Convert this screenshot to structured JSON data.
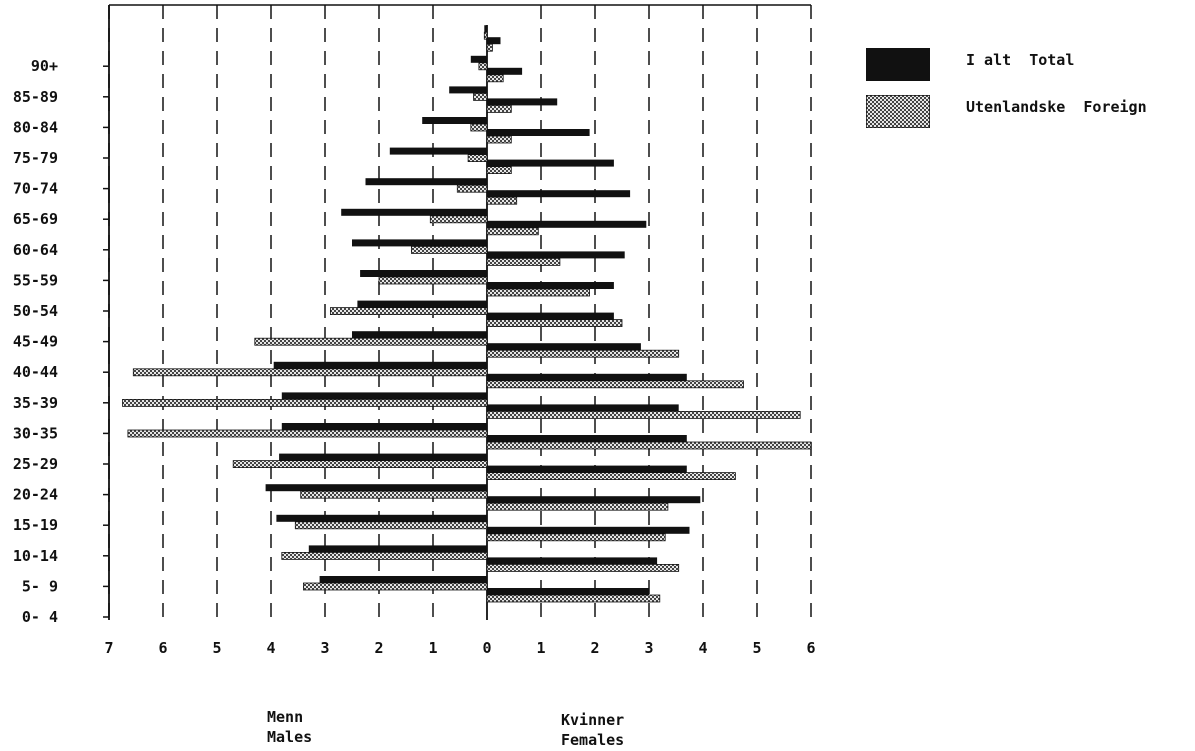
{
  "chart_data": {
    "type": "bar",
    "orientation": "horizontal-population-pyramid",
    "categories": [
      "0- 4",
      "5- 9",
      "10-14",
      "15-19",
      "20-24",
      "25-29",
      "30-35",
      "35-39",
      "40-44",
      "45-49",
      "50-54",
      "55-59",
      "60-64",
      "65-69",
      "70-74",
      "75-79",
      "80-84",
      "85-89",
      "90+"
    ],
    "x_ticks_left": [
      "7",
      "6",
      "5",
      "4",
      "3",
      "2",
      "1",
      "0"
    ],
    "x_ticks_right": [
      "1",
      "2",
      "3",
      "4",
      "5",
      "6"
    ],
    "xlim_males": [
      7,
      0
    ],
    "xlim_females": [
      0,
      6
    ],
    "grid": "vertical dashed",
    "legend_position": "top-right",
    "series": [
      {
        "name": "I alt  Total",
        "color": "#111111",
        "pattern": "solid",
        "males": [
          3.1,
          3.3,
          3.9,
          4.1,
          3.85,
          3.8,
          3.8,
          3.95,
          2.5,
          2.4,
          2.35,
          2.5,
          2.7,
          2.25,
          1.8,
          1.2,
          0.7,
          0.3,
          0.05
        ],
        "females": [
          3.0,
          3.15,
          3.75,
          3.95,
          3.7,
          3.7,
          3.55,
          3.7,
          2.85,
          2.35,
          2.35,
          2.55,
          2.95,
          2.65,
          2.35,
          1.9,
          1.3,
          0.65,
          0.25
        ]
      },
      {
        "name": "Utenlandske  Foreign",
        "color": "#777777",
        "pattern": "crosshatch",
        "males": [
          3.4,
          3.8,
          3.55,
          3.45,
          4.7,
          6.65,
          6.75,
          6.55,
          4.3,
          2.9,
          2.0,
          1.4,
          1.05,
          0.55,
          0.35,
          0.3,
          0.25,
          0.15,
          0.05
        ],
        "females": [
          3.2,
          3.55,
          3.3,
          3.35,
          4.6,
          6.0,
          5.8,
          4.75,
          3.55,
          2.5,
          1.9,
          1.35,
          0.95,
          0.55,
          0.45,
          0.45,
          0.45,
          0.3,
          0.1
        ]
      }
    ]
  },
  "labels": {
    "males_no": "Menn",
    "males_en": "Males",
    "females_no": "Kvinner",
    "females_en": "Females"
  }
}
